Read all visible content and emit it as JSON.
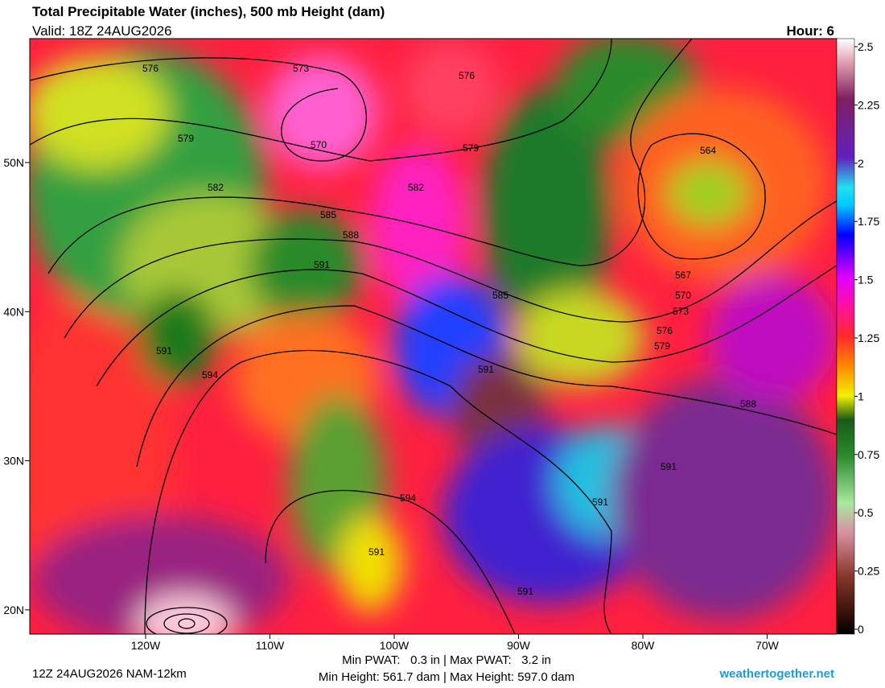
{
  "header": {
    "title": "Total Precipitable Water (inches), 500 mb Height (dam)",
    "valid": "Valid: 18Z 24AUG2026",
    "hour": "Hour: 6"
  },
  "colorbar": {
    "lim": [
      0,
      2.5
    ],
    "ticks": [
      0,
      0.25,
      0.5,
      0.75,
      1,
      1.25,
      1.5,
      1.75,
      2,
      2.25,
      2.5
    ]
  },
  "map": {
    "xticks": [
      {
        "value": -120,
        "label": "120W"
      },
      {
        "value": -110,
        "label": "110W"
      },
      {
        "value": -100,
        "label": "100W"
      },
      {
        "value": -90,
        "label": "90W"
      },
      {
        "value": -80,
        "label": "80W"
      },
      {
        "value": -70,
        "label": "70W"
      }
    ],
    "yticks": [
      {
        "value": 50,
        "label": "50N"
      },
      {
        "value": 40,
        "label": "40N"
      },
      {
        "value": 30,
        "label": "30N"
      },
      {
        "value": 20,
        "label": "20N"
      }
    ],
    "contour_labels": [
      576,
      573,
      576,
      579,
      570,
      579,
      564,
      582,
      582,
      585,
      588,
      591,
      567,
      585,
      570,
      573,
      576,
      579,
      591,
      594,
      591,
      588,
      591,
      594,
      591,
      591,
      591
    ]
  },
  "footer": {
    "run": "12Z 24AUG2026 NAM-12km",
    "min_max_pwat": "Min PWAT:   0.3 in | Max PWAT:   3.2 in",
    "min_max_height": "Min Height: 561.7 dam | Max Height: 597.0 dam",
    "site": "weathertogether.net"
  }
}
